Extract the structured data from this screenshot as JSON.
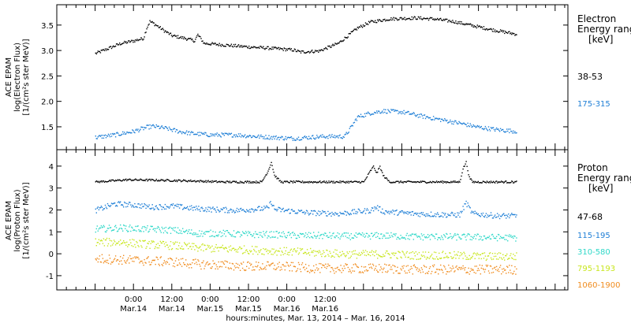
{
  "colors": {
    "black": "#000000",
    "blue": "#1f7fd6",
    "cyan": "#2fd8c8",
    "yellowgreen": "#c8e61e",
    "orange": "#f08c1e"
  },
  "chart_data": [
    {
      "type": "scatter",
      "panel": "electron",
      "ylabel_lines": [
        "ACE EPAM",
        "log(Electron Flux)",
        "[1/(cm²s ster MeV)]"
      ],
      "ylim": [
        1.05,
        3.9
      ],
      "yticks": [
        1.5,
        2.0,
        2.5,
        3.0,
        3.5
      ],
      "ytick_labels": [
        "1.5",
        "2.0",
        "2.5",
        "3.0",
        "3.5"
      ],
      "legend_title": [
        "Electron",
        "Energy range",
        "[keV]"
      ],
      "series": [
        {
          "name": "38-53",
          "color": "black",
          "points": [
            [
              0,
              2.95
            ],
            [
              4,
              3.05
            ],
            [
              8,
              3.15
            ],
            [
              12,
              3.2
            ],
            [
              15,
              3.25
            ],
            [
              16,
              3.45
            ],
            [
              17,
              3.58
            ],
            [
              18,
              3.55
            ],
            [
              21,
              3.42
            ],
            [
              24,
              3.3
            ],
            [
              28,
              3.25
            ],
            [
              31,
              3.2
            ],
            [
              32,
              3.32
            ],
            [
              34,
              3.15
            ],
            [
              40,
              3.12
            ],
            [
              48,
              3.08
            ],
            [
              56,
              3.05
            ],
            [
              62,
              3.02
            ],
            [
              64,
              2.98
            ],
            [
              70,
              3.0
            ],
            [
              72,
              3.05
            ],
            [
              76,
              3.15
            ],
            [
              79,
              3.3
            ],
            [
              82,
              3.45
            ],
            [
              86,
              3.57
            ],
            [
              92,
              3.63
            ],
            [
              100,
              3.65
            ],
            [
              106,
              3.63
            ],
            [
              112,
              3.58
            ],
            [
              118,
              3.5
            ],
            [
              124,
              3.42
            ],
            [
              130,
              3.35
            ],
            [
              132,
              3.33
            ]
          ]
        },
        {
          "name": "175-315",
          "color": "blue",
          "points": [
            [
              0,
              1.3
            ],
            [
              6,
              1.35
            ],
            [
              12,
              1.42
            ],
            [
              16,
              1.5
            ],
            [
              18,
              1.52
            ],
            [
              22,
              1.48
            ],
            [
              26,
              1.42
            ],
            [
              30,
              1.38
            ],
            [
              36,
              1.35
            ],
            [
              44,
              1.35
            ],
            [
              50,
              1.32
            ],
            [
              56,
              1.3
            ],
            [
              62,
              1.28
            ],
            [
              66,
              1.3
            ],
            [
              72,
              1.32
            ],
            [
              78,
              1.32
            ],
            [
              80,
              1.5
            ],
            [
              82,
              1.7
            ],
            [
              86,
              1.78
            ],
            [
              90,
              1.82
            ],
            [
              96,
              1.8
            ],
            [
              102,
              1.72
            ],
            [
              108,
              1.65
            ],
            [
              114,
              1.58
            ],
            [
              120,
              1.5
            ],
            [
              126,
              1.45
            ],
            [
              132,
              1.42
            ]
          ]
        }
      ]
    },
    {
      "type": "scatter",
      "panel": "proton",
      "ylabel_lines": [
        "ACE EPAM",
        "log(Proton Flux)",
        "[1/(cm²s ster MeV)]"
      ],
      "ylim": [
        -1.65,
        4.75
      ],
      "yticks": [
        -1,
        0,
        1,
        2,
        3,
        4
      ],
      "ytick_labels": [
        "-1",
        "0",
        "1",
        "2",
        "3",
        "4"
      ],
      "legend_title": [
        "Proton",
        "Energy range",
        "[keV]"
      ],
      "series": [
        {
          "name": "47-68",
          "color": "black",
          "points": [
            [
              0,
              3.3
            ],
            [
              10,
              3.4
            ],
            [
              20,
              3.38
            ],
            [
              30,
              3.35
            ],
            [
              40,
              3.3
            ],
            [
              52,
              3.3
            ],
            [
              54,
              3.8
            ],
            [
              55,
              4.2
            ],
            [
              56,
              3.6
            ],
            [
              58,
              3.3
            ],
            [
              70,
              3.3
            ],
            [
              84,
              3.3
            ],
            [
              86,
              3.8
            ],
            [
              87,
              4.0
            ],
            [
              88,
              3.7
            ],
            [
              89,
              4.0
            ],
            [
              90,
              3.6
            ],
            [
              92,
              3.3
            ],
            [
              104,
              3.3
            ],
            [
              114,
              3.3
            ],
            [
              115,
              3.9
            ],
            [
              116,
              4.2
            ],
            [
              117,
              3.5
            ],
            [
              118,
              3.3
            ],
            [
              132,
              3.3
            ]
          ]
        },
        {
          "name": "115-195",
          "color": "blue",
          "points": [
            [
              0,
              2.0
            ],
            [
              6,
              2.3
            ],
            [
              12,
              2.25
            ],
            [
              18,
              2.15
            ],
            [
              24,
              2.2
            ],
            [
              30,
              2.1
            ],
            [
              36,
              2.05
            ],
            [
              44,
              2.0
            ],
            [
              54,
              2.1
            ],
            [
              55,
              2.4
            ],
            [
              56,
              2.05
            ],
            [
              66,
              1.9
            ],
            [
              76,
              1.85
            ],
            [
              86,
              2.0
            ],
            [
              88,
              2.15
            ],
            [
              90,
              1.95
            ],
            [
              100,
              1.85
            ],
            [
              110,
              1.8
            ],
            [
              114,
              1.8
            ],
            [
              116,
              2.35
            ],
            [
              118,
              1.85
            ],
            [
              126,
              1.75
            ],
            [
              132,
              1.75
            ]
          ]
        },
        {
          "name": "310-580",
          "color": "cyan",
          "points": [
            [
              0,
              1.15
            ],
            [
              8,
              1.2
            ],
            [
              16,
              1.15
            ],
            [
              24,
              1.1
            ],
            [
              32,
              0.95
            ],
            [
              40,
              0.95
            ],
            [
              48,
              0.9
            ],
            [
              56,
              0.9
            ],
            [
              64,
              0.85
            ],
            [
              72,
              0.85
            ],
            [
              80,
              0.82
            ],
            [
              90,
              0.85
            ],
            [
              100,
              0.8
            ],
            [
              110,
              0.8
            ],
            [
              120,
              0.78
            ],
            [
              132,
              0.75
            ]
          ]
        },
        {
          "name": "795-1193",
          "color": "yellowgreen",
          "points": [
            [
              0,
              0.55
            ],
            [
              8,
              0.55
            ],
            [
              16,
              0.45
            ],
            [
              24,
              0.4
            ],
            [
              32,
              0.3
            ],
            [
              40,
              0.25
            ],
            [
              48,
              0.2
            ],
            [
              56,
              0.15
            ],
            [
              64,
              0.1
            ],
            [
              72,
              0.05
            ],
            [
              80,
              0.0
            ],
            [
              90,
              0.0
            ],
            [
              100,
              -0.05
            ],
            [
              110,
              -0.05
            ],
            [
              120,
              -0.1
            ],
            [
              132,
              -0.1
            ]
          ]
        },
        {
          "name": "1060-1900",
          "color": "orange",
          "points": [
            [
              0,
              -0.2
            ],
            [
              8,
              -0.25
            ],
            [
              16,
              -0.3
            ],
            [
              24,
              -0.35
            ],
            [
              32,
              -0.45
            ],
            [
              40,
              -0.5
            ],
            [
              48,
              -0.55
            ],
            [
              56,
              -0.55
            ],
            [
              64,
              -0.6
            ],
            [
              72,
              -0.65
            ],
            [
              80,
              -0.65
            ],
            [
              90,
              -0.65
            ],
            [
              100,
              -0.7
            ],
            [
              110,
              -0.7
            ],
            [
              120,
              -0.7
            ],
            [
              132,
              -0.7
            ]
          ]
        }
      ]
    }
  ],
  "xaxis": {
    "title": "hours:minutes, Mar. 13, 2014 – Mar. 16, 2014",
    "range_hours": [
      -12,
      148
    ],
    "ticks": [
      {
        "h": 12,
        "time": "0:00",
        "date": "Mar.14"
      },
      {
        "h": 24,
        "time": "12:00",
        "date": "Mar.14"
      },
      {
        "h": 36,
        "time": "0:00",
        "date": "Mar.15"
      },
      {
        "h": 48,
        "time": "12:00",
        "date": "Mar.15"
      },
      {
        "h": 60,
        "time": "0:00",
        "date": "Mar.16"
      },
      {
        "h": 72,
        "time": "12:00",
        "date": "Mar.16"
      }
    ]
  }
}
